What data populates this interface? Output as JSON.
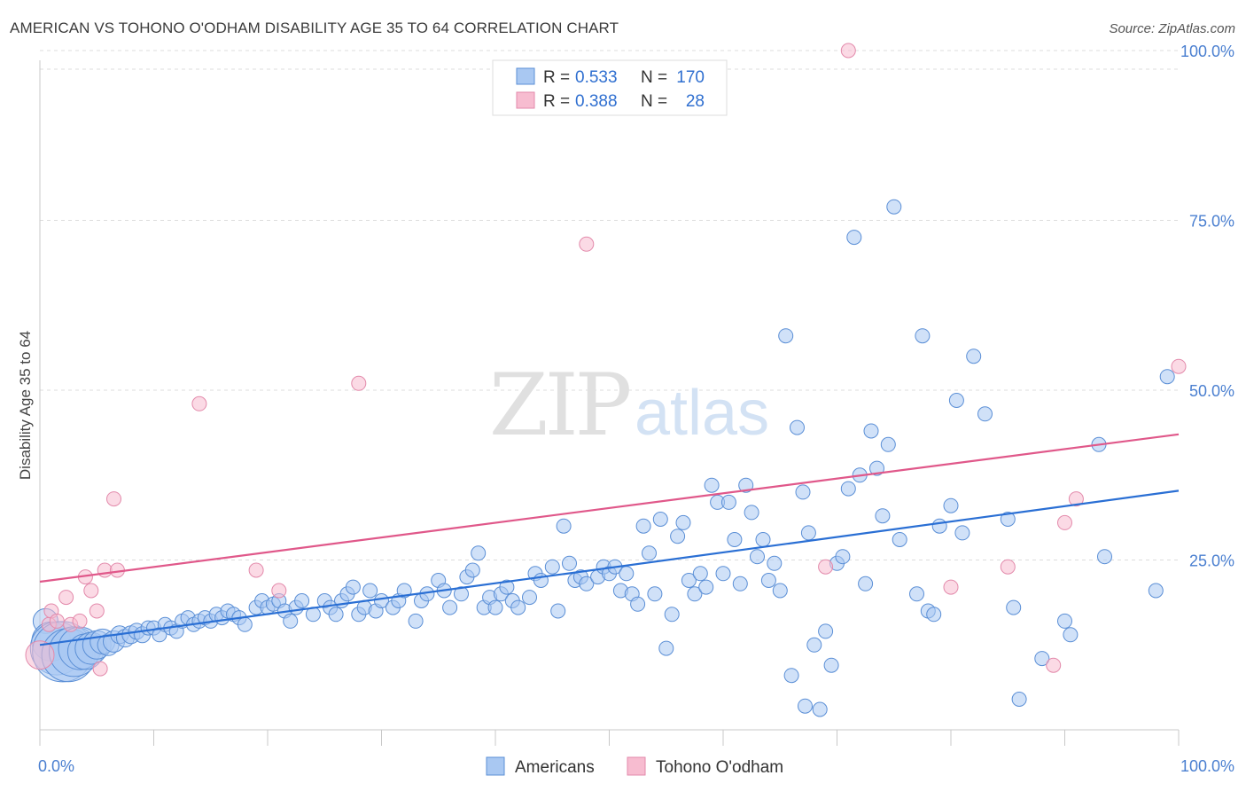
{
  "title": "AMERICAN VS TOHONO O'ODHAM DISABILITY AGE 35 TO 64 CORRELATION CHART",
  "source": "Source: ZipAtlas.com",
  "watermark": {
    "zip": "ZIP",
    "atlas": "atlas"
  },
  "legend": {
    "rows": [
      {
        "r_label": "R =",
        "r_value": "0.533",
        "n_label": "N =",
        "n_value": "170"
      },
      {
        "r_label": "R =",
        "r_value": "0.388",
        "n_label": "N =",
        "n_value": "28"
      }
    ]
  },
  "colors": {
    "americans_fill": "#a9c8f2",
    "americans_stroke": "#5b8fd6",
    "americans_line": "#2a6fd4",
    "tohono_fill": "#f7bcd0",
    "tohono_stroke": "#e38aab",
    "tohono_line": "#e0588a",
    "grid": "#dddddd",
    "tick_text": "#4a7fd0"
  },
  "chart_data": {
    "type": "scatter",
    "title": "AMERICAN VS TOHONO O'ODHAM DISABILITY AGE 35 TO 64 CORRELATION CHART",
    "xlabel": "",
    "ylabel": "Disability Age 35 to 64",
    "xlim": [
      0,
      100
    ],
    "ylim": [
      0,
      102
    ],
    "x_tick_labels": [
      "0.0%",
      "100.0%"
    ],
    "y_tick_labels": [
      "25.0%",
      "50.0%",
      "75.0%",
      "100.0%"
    ],
    "y_ticks": [
      25,
      50,
      75,
      100
    ],
    "grid": true,
    "legend_position": "top-center",
    "series": [
      {
        "name": "Americans",
        "r": 0.533,
        "n": 170,
        "trend": [
          [
            0,
            12.5
          ],
          [
            100,
            35.2
          ]
        ],
        "points": [
          [
            0.5,
            16,
            14
          ],
          [
            1,
            13,
            22
          ],
          [
            1.5,
            12,
            30
          ],
          [
            2,
            11.5,
            34
          ],
          [
            2.5,
            11,
            30
          ],
          [
            3,
            11.5,
            28
          ],
          [
            3.5,
            12,
            24
          ],
          [
            4,
            11.5,
            20
          ],
          [
            4.5,
            12,
            18
          ],
          [
            5,
            12.5,
            16
          ],
          [
            5.5,
            13,
            14
          ],
          [
            6,
            12.5,
            12
          ],
          [
            6.5,
            13,
            12
          ],
          [
            7,
            14,
            10
          ],
          [
            7.5,
            13.5,
            10
          ],
          [
            8,
            14,
            10
          ],
          [
            8.5,
            14.5,
            9
          ],
          [
            9,
            14,
            9
          ],
          [
            9.5,
            15,
            8
          ],
          [
            10,
            15,
            8
          ],
          [
            10.5,
            14,
            8
          ],
          [
            11,
            15.5,
            8
          ],
          [
            11.5,
            15,
            8
          ],
          [
            12,
            14.5,
            8
          ],
          [
            12.5,
            16,
            8
          ],
          [
            13,
            16.5,
            8
          ],
          [
            13.5,
            15.5,
            8
          ],
          [
            14,
            16,
            8
          ],
          [
            14.5,
            16.5,
            8
          ],
          [
            15,
            16,
            8
          ],
          [
            15.5,
            17,
            8
          ],
          [
            16,
            16.5,
            8
          ],
          [
            16.5,
            17.5,
            8
          ],
          [
            17,
            17,
            8
          ],
          [
            17.5,
            16.5,
            8
          ],
          [
            18,
            15.5,
            8
          ],
          [
            19,
            18,
            8
          ],
          [
            19.5,
            19,
            8
          ],
          [
            20,
            18,
            8
          ],
          [
            20.5,
            18.5,
            8
          ],
          [
            21,
            19,
            8
          ],
          [
            21.5,
            17.5,
            8
          ],
          [
            22,
            16,
            8
          ],
          [
            22.5,
            18,
            8
          ],
          [
            23,
            19,
            8
          ],
          [
            24,
            17,
            8
          ],
          [
            25,
            19,
            8
          ],
          [
            25.5,
            18,
            8
          ],
          [
            26,
            17,
            8
          ],
          [
            26.5,
            19,
            8
          ],
          [
            27,
            20,
            8
          ],
          [
            27.5,
            21,
            8
          ],
          [
            28,
            17,
            8
          ],
          [
            28.5,
            18,
            8
          ],
          [
            29,
            20.5,
            8
          ],
          [
            29.5,
            17.5,
            8
          ],
          [
            30,
            19,
            8
          ],
          [
            31,
            18,
            8
          ],
          [
            31.5,
            19,
            8
          ],
          [
            32,
            20.5,
            8
          ],
          [
            33,
            16,
            8
          ],
          [
            33.5,
            19,
            8
          ],
          [
            34,
            20,
            8
          ],
          [
            35,
            22,
            8
          ],
          [
            35.5,
            20.5,
            8
          ],
          [
            36,
            18,
            8
          ],
          [
            37,
            20,
            8
          ],
          [
            37.5,
            22.5,
            8
          ],
          [
            38,
            23.5,
            8
          ],
          [
            38.5,
            26,
            8
          ],
          [
            39,
            18,
            8
          ],
          [
            39.5,
            19.5,
            8
          ],
          [
            40,
            18,
            8
          ],
          [
            40.5,
            20,
            8
          ],
          [
            41,
            21,
            8
          ],
          [
            41.5,
            19,
            8
          ],
          [
            42,
            18,
            8
          ],
          [
            43,
            19.5,
            8
          ],
          [
            43.5,
            23,
            8
          ],
          [
            44,
            22,
            8
          ],
          [
            45,
            24,
            8
          ],
          [
            45.5,
            17.5,
            8
          ],
          [
            46,
            30,
            8
          ],
          [
            46.5,
            24.5,
            8
          ],
          [
            47,
            22,
            8
          ],
          [
            47.5,
            22.5,
            8
          ],
          [
            48,
            21.5,
            8
          ],
          [
            49,
            22.5,
            8
          ],
          [
            49.5,
            24,
            8
          ],
          [
            50,
            23,
            8
          ],
          [
            50.5,
            24,
            8
          ],
          [
            51,
            20.5,
            8
          ],
          [
            51.5,
            23,
            8
          ],
          [
            52,
            20,
            8
          ],
          [
            52.5,
            18.5,
            8
          ],
          [
            53,
            30,
            8
          ],
          [
            53.5,
            26,
            8
          ],
          [
            54,
            20,
            8
          ],
          [
            54.5,
            31,
            8
          ],
          [
            55,
            12,
            8
          ],
          [
            55.5,
            17,
            8
          ],
          [
            56,
            28.5,
            8
          ],
          [
            56.5,
            30.5,
            8
          ],
          [
            57,
            22,
            8
          ],
          [
            57.5,
            20,
            8
          ],
          [
            58,
            23,
            8
          ],
          [
            58.5,
            21,
            8
          ],
          [
            59,
            36,
            8
          ],
          [
            59.5,
            33.5,
            8
          ],
          [
            60,
            23,
            8
          ],
          [
            60.5,
            33.5,
            8
          ],
          [
            61,
            28,
            8
          ],
          [
            61.5,
            21.5,
            8
          ],
          [
            62,
            36,
            8
          ],
          [
            62.5,
            32,
            8
          ],
          [
            63,
            25.5,
            8
          ],
          [
            63.5,
            28,
            8
          ],
          [
            64,
            22,
            8
          ],
          [
            64.5,
            24.5,
            8
          ],
          [
            65,
            20.5,
            8
          ],
          [
            65.5,
            58,
            8
          ],
          [
            66,
            8,
            8
          ],
          [
            66.5,
            44.5,
            8
          ],
          [
            67,
            35,
            8
          ],
          [
            67.5,
            29,
            8
          ],
          [
            67.2,
            3.5,
            8
          ],
          [
            68,
            12.5,
            8
          ],
          [
            68.5,
            3,
            8
          ],
          [
            69,
            14.5,
            8
          ],
          [
            69.5,
            9.5,
            8
          ],
          [
            70,
            24.5,
            8
          ],
          [
            70.5,
            25.5,
            8
          ],
          [
            71,
            35.5,
            8
          ],
          [
            71.5,
            72.5,
            8
          ],
          [
            72,
            37.5,
            8
          ],
          [
            72.5,
            21.5,
            8
          ],
          [
            73,
            44,
            8
          ],
          [
            73.5,
            38.5,
            8
          ],
          [
            74,
            31.5,
            8
          ],
          [
            74.5,
            42,
            8
          ],
          [
            75,
            77,
            8
          ],
          [
            75.5,
            28,
            8
          ],
          [
            77,
            20,
            8
          ],
          [
            77.5,
            58,
            8
          ],
          [
            78,
            17.5,
            8
          ],
          [
            78.5,
            17,
            8
          ],
          [
            79,
            30,
            8
          ],
          [
            80,
            33,
            8
          ],
          [
            80.5,
            48.5,
            8
          ],
          [
            81,
            29,
            8
          ],
          [
            82,
            55,
            8
          ],
          [
            83,
            46.5,
            8
          ],
          [
            85,
            31,
            8
          ],
          [
            85.5,
            18,
            8
          ],
          [
            86,
            4.5,
            8
          ],
          [
            88,
            10.5,
            8
          ],
          [
            90,
            16,
            8
          ],
          [
            90.5,
            14,
            8
          ],
          [
            93,
            42,
            8
          ],
          [
            93.5,
            25.5,
            8
          ],
          [
            98,
            20.5,
            8
          ],
          [
            99,
            52,
            8
          ]
        ]
      },
      {
        "name": "Tohono O'odham",
        "r": 0.388,
        "n": 28,
        "trend": [
          [
            0,
            21.8
          ],
          [
            100,
            43.5
          ]
        ],
        "points": [
          [
            0,
            11,
            16
          ],
          [
            0.8,
            15.5,
            8
          ],
          [
            1,
            17.5,
            8
          ],
          [
            1.5,
            16,
            8
          ],
          [
            2.3,
            19.5,
            8
          ],
          [
            2.7,
            15.5,
            8
          ],
          [
            3.5,
            16,
            8
          ],
          [
            4,
            22.5,
            8
          ],
          [
            4.5,
            20.5,
            8
          ],
          [
            5,
            17.5,
            8
          ],
          [
            5.3,
            9,
            8
          ],
          [
            5.7,
            23.5,
            8
          ],
          [
            6.5,
            34,
            8
          ],
          [
            6.8,
            23.5,
            8
          ],
          [
            14,
            48,
            8
          ],
          [
            19,
            23.5,
            8
          ],
          [
            21,
            20.5,
            8
          ],
          [
            28,
            51,
            8
          ],
          [
            48,
            71.5,
            8
          ],
          [
            69,
            24,
            8
          ],
          [
            71,
            100,
            8
          ],
          [
            80,
            21,
            8
          ],
          [
            85,
            24,
            8
          ],
          [
            89,
            9.5,
            8
          ],
          [
            90,
            30.5,
            8
          ],
          [
            91,
            34,
            8
          ],
          [
            100,
            53.5,
            8
          ]
        ]
      }
    ]
  },
  "bottom_legend": {
    "americans": "Americans",
    "tohono": "Tohono O'odham"
  }
}
